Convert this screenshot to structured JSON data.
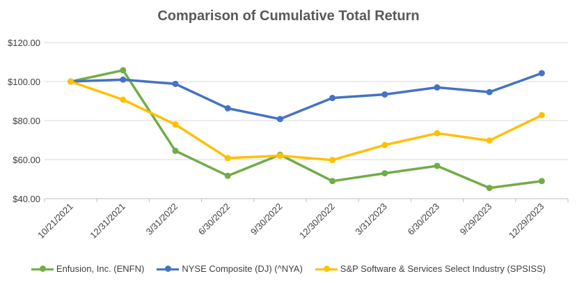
{
  "chart_data": {
    "type": "line",
    "title": "Comparison of Cumulative Total Return",
    "xlabel": "",
    "ylabel": "",
    "categories": [
      "10/21/2021",
      "12/31/2021",
      "3/31/2022",
      "6/30/2022",
      "9/30/2022",
      "12/30/2022",
      "3/31/2023",
      "6/30/2023",
      "9/29/2023",
      "12/29/2023"
    ],
    "ylim": [
      40,
      120
    ],
    "yticks": [
      40,
      60,
      80,
      100,
      120
    ],
    "ytick_labels": [
      "$40.00",
      "$60.00",
      "$80.00",
      "$100.00",
      "$120.00"
    ],
    "grid": true,
    "legend_position": "bottom",
    "series": [
      {
        "name": "Enfusion, Inc. (ENFN)",
        "color": "#70ad47",
        "values": [
          100.0,
          105.8,
          64.5,
          51.7,
          62.5,
          49.0,
          53.0,
          56.8,
          45.5,
          49.0
        ]
      },
      {
        "name": "NYSE Composite (DJ) (^NYA)",
        "color": "#4472c4",
        "values": [
          100.0,
          101.0,
          98.8,
          86.3,
          80.8,
          91.6,
          93.4,
          97.0,
          94.6,
          104.3
        ]
      },
      {
        "name": "S&P Software & Services Select Industry (SPSISS)",
        "color": "#ffc000",
        "values": [
          100.0,
          90.7,
          78.0,
          60.8,
          62.0,
          59.8,
          67.5,
          73.5,
          69.8,
          82.8
        ]
      }
    ]
  }
}
